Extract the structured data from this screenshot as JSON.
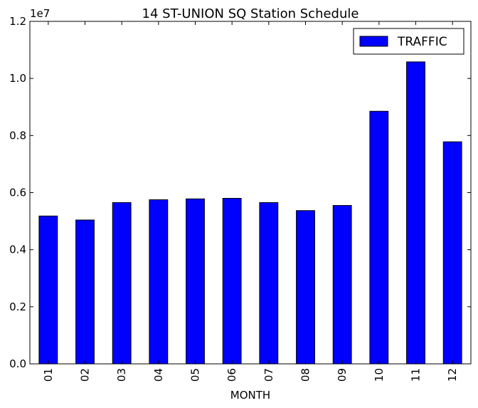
{
  "chart_data": {
    "type": "bar",
    "title": "14 ST-UNION SQ Station Schedule",
    "xlabel": "MONTH",
    "ylabel": "",
    "y_offset_label": "1e7",
    "categories": [
      "01",
      "02",
      "03",
      "04",
      "05",
      "06",
      "07",
      "08",
      "09",
      "10",
      "11",
      "12"
    ],
    "series": [
      {
        "name": "TRAFFIC",
        "color": "#0000ff",
        "values": [
          5180000,
          5040000,
          5650000,
          5750000,
          5780000,
          5800000,
          5650000,
          5370000,
          5550000,
          8850000,
          10580000,
          7780000
        ]
      }
    ],
    "ylim": [
      0,
      12000000
    ],
    "yticks": [
      0,
      2000000,
      4000000,
      6000000,
      8000000,
      10000000,
      12000000
    ],
    "ytick_labels": [
      "0.0",
      "0.2",
      "0.4",
      "0.6",
      "0.8",
      "1.0",
      "1.2"
    ],
    "legend_position": "top-right",
    "grid": false
  }
}
